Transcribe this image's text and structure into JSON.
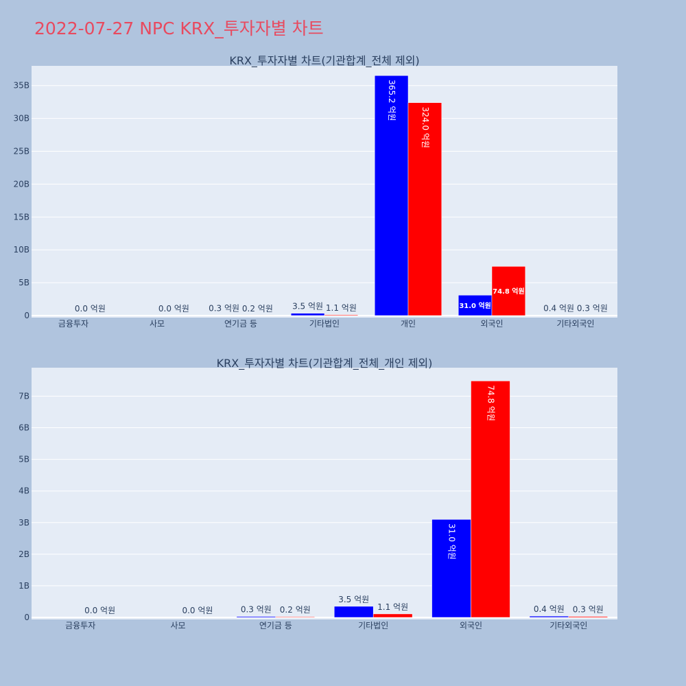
{
  "title": "2022-07-27 NPC KRX_투자자별 차트",
  "colors": {
    "buy": "#0000ff",
    "sell": "#ff0000",
    "plot_bg": "#e5ecf6",
    "page_bg": "#b0c4de",
    "title": "#e84a5f"
  },
  "chart_data": [
    {
      "type": "bar",
      "title": "KRX_투자자별 차트(기관합계_전체 제외)",
      "categories": [
        "금융투자",
        "사모",
        "연기금 등",
        "기타법인",
        "개인",
        "외국인",
        "기타외국인"
      ],
      "yticks": [
        "0",
        "5B",
        "10B",
        "15B",
        "20B",
        "25B",
        "30B",
        "35B"
      ],
      "ylim": [
        0,
        38000000000
      ],
      "grid": true,
      "series": [
        {
          "color": "#0000ff",
          "values": [
            0,
            0,
            30000000,
            350000000,
            36520000000,
            3100000000,
            40000000
          ],
          "labels": [
            "",
            "",
            "0.3 억원",
            "3.5 억원",
            "365.2 억원",
            "31.0 억원",
            "0.4 억원"
          ]
        },
        {
          "color": "#ff0000",
          "values": [
            0,
            0,
            20000000,
            110000000,
            32400000000,
            7480000000,
            30000000
          ],
          "labels": [
            "0.0 억원",
            "0.0 억원",
            "0.2 억원",
            "1.1 억원",
            "324.0 억원",
            "74.8 억원",
            "0.3 억원"
          ]
        }
      ]
    },
    {
      "type": "bar",
      "title": "KRX_투자자별 차트(기관합계_전체_개인 제외)",
      "categories": [
        "금융투자",
        "사모",
        "연기금 등",
        "기타법인",
        "외국인",
        "기타외국인"
      ],
      "yticks": [
        "0",
        "1B",
        "2B",
        "3B",
        "4B",
        "5B",
        "6B",
        "7B"
      ],
      "ylim": [
        0,
        7900000000
      ],
      "grid": true,
      "series": [
        {
          "color": "#0000ff",
          "values": [
            0,
            0,
            30000000,
            350000000,
            3100000000,
            40000000
          ],
          "labels": [
            "",
            "",
            "0.3 억원",
            "3.5 억원",
            "31.0 억원",
            "0.4 억원"
          ]
        },
        {
          "color": "#ff0000",
          "values": [
            0,
            0,
            20000000,
            110000000,
            7480000000,
            30000000
          ],
          "labels": [
            "0.0 억원",
            "0.0 억원",
            "0.2 억원",
            "1.1 억원",
            "74.8 억원",
            "0.3 억원"
          ]
        }
      ]
    }
  ]
}
